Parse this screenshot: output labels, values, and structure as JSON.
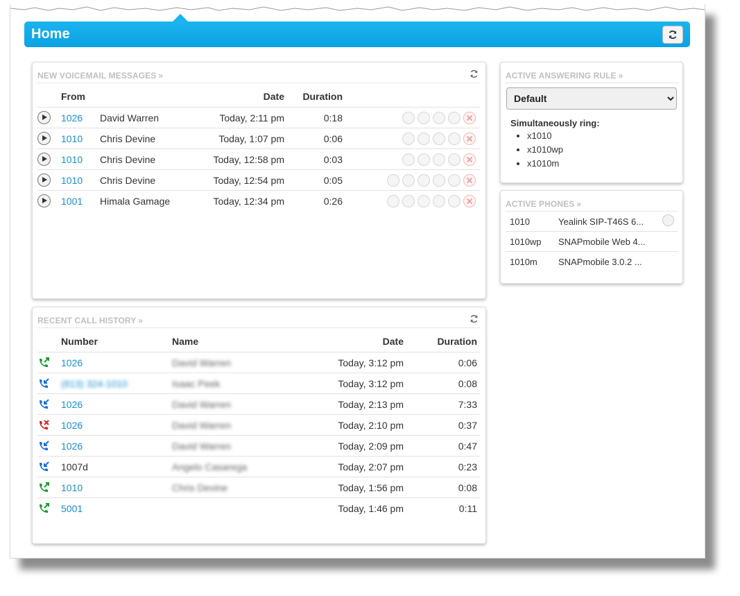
{
  "header": {
    "title": "Home"
  },
  "voicemail": {
    "title": "NEW VOICEMAIL MESSAGES",
    "chevron": "»",
    "columns": {
      "from": "From",
      "date": "Date",
      "duration": "Duration"
    },
    "rows": [
      {
        "ext": "1026",
        "name": "David Warren",
        "date": "Today, 2:11 pm",
        "duration": "0:18",
        "icon_count": 5
      },
      {
        "ext": "1010",
        "name": "Chris Devine",
        "date": "Today, 1:07 pm",
        "duration": "0:06",
        "icon_count": 5
      },
      {
        "ext": "1010",
        "name": "Chris Devine",
        "date": "Today, 12:58 pm",
        "duration": "0:03",
        "icon_count": 5
      },
      {
        "ext": "1010",
        "name": "Chris Devine",
        "date": "Today, 12:54 pm",
        "duration": "0:05",
        "icon_count": 6
      },
      {
        "ext": "1001",
        "name": "Himala Gamage",
        "date": "Today, 12:34 pm",
        "duration": "0:26",
        "icon_count": 6
      }
    ]
  },
  "history": {
    "title": "RECENT CALL HISTORY",
    "chevron": "»",
    "columns": {
      "number": "Number",
      "name": "Name",
      "date": "Date",
      "duration": "Duration"
    },
    "rows": [
      {
        "type": "outgoing",
        "color": "#1a9a2a",
        "number": "1026",
        "linked": true,
        "name": "David Warren",
        "date": "Today, 3:12 pm",
        "duration": "0:06"
      },
      {
        "type": "incoming",
        "color": "#1a6fd8",
        "number": "(813) 324-1010",
        "linked": true,
        "blurred": true,
        "name": "Isaac Peek",
        "date": "Today, 3:12 pm",
        "duration": "0:08"
      },
      {
        "type": "incoming",
        "color": "#1a6fd8",
        "number": "1026",
        "linked": true,
        "name": "David Warren",
        "date": "Today, 2:13 pm",
        "duration": "7:33"
      },
      {
        "type": "missed",
        "color": "#e02020",
        "number": "1026",
        "linked": true,
        "name": "David Warren",
        "date": "Today, 2:10 pm",
        "duration": "0:37"
      },
      {
        "type": "incoming",
        "color": "#1a6fd8",
        "number": "1026",
        "linked": true,
        "name": "David Warren",
        "date": "Today, 2:09 pm",
        "duration": "0:47"
      },
      {
        "type": "incoming",
        "color": "#1a6fd8",
        "number": "1007d",
        "linked": false,
        "name": "Angelo Casarega",
        "date": "Today, 2:07 pm",
        "duration": "0:23"
      },
      {
        "type": "outgoing",
        "color": "#1a9a2a",
        "number": "1010",
        "linked": true,
        "name": "Chris Devine",
        "date": "Today, 1:56 pm",
        "duration": "0:08"
      },
      {
        "type": "outgoing",
        "color": "#1a9a2a",
        "number": "5001",
        "linked": true,
        "name": "",
        "date": "Today, 1:46 pm",
        "duration": "0:11"
      }
    ]
  },
  "answering": {
    "title": "ACTIVE ANSWERING RULE",
    "chevron": "»",
    "selected": "Default",
    "sim_label": "Simultaneously ring:",
    "ring_list": [
      "x1010",
      "x1010wp",
      "x1010m"
    ]
  },
  "phones": {
    "title": "ACTIVE PHONES",
    "chevron": "»",
    "rows": [
      {
        "ext": "1010",
        "device": "Yealink SIP-T46S 6...",
        "gear": true
      },
      {
        "ext": "1010wp",
        "device": "SNAPmobile Web 4...",
        "gear": false
      },
      {
        "ext": "1010m",
        "device": "SNAPmobile 3.0.2 ...",
        "gear": false
      }
    ]
  },
  "icons": {
    "refresh": "refresh-icon",
    "play": "play-icon",
    "call_back": "phone-icon",
    "forward": "forward-icon",
    "save": "user-icon",
    "transcript": "document-icon",
    "archive": "save-icon",
    "delete": "delete-icon",
    "settings": "gear-icon"
  }
}
